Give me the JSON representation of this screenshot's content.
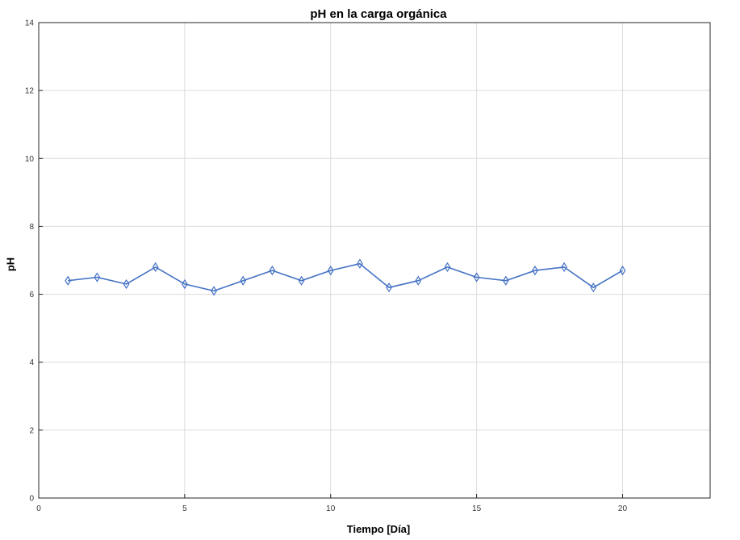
{
  "chart_data": {
    "type": "line",
    "title": "pH en la carga orgánica",
    "xlabel": "Tiempo [Día]",
    "ylabel": "pH",
    "xlim": [
      0,
      23
    ],
    "ylim": [
      0,
      14
    ],
    "xticks": [
      0,
      5,
      10,
      15,
      20
    ],
    "yticks": [
      0,
      2,
      4,
      6,
      8,
      10,
      12,
      14
    ],
    "grid": true,
    "legend": "none",
    "series": [
      {
        "color": "#4472c4",
        "marker": "diamond",
        "x": [
          1,
          2,
          3,
          4,
          5,
          6,
          7,
          8,
          9,
          10,
          11,
          12,
          13,
          14,
          15,
          16,
          17,
          18,
          19,
          20
        ],
        "y": [
          6.4,
          6.5,
          6.3,
          6.8,
          6.3,
          6.1,
          6.4,
          6.7,
          6.4,
          6.7,
          6.9,
          6.2,
          6.4,
          6.8,
          6.5,
          6.4,
          6.7,
          6.8,
          6.2,
          6.7
        ]
      }
    ]
  }
}
